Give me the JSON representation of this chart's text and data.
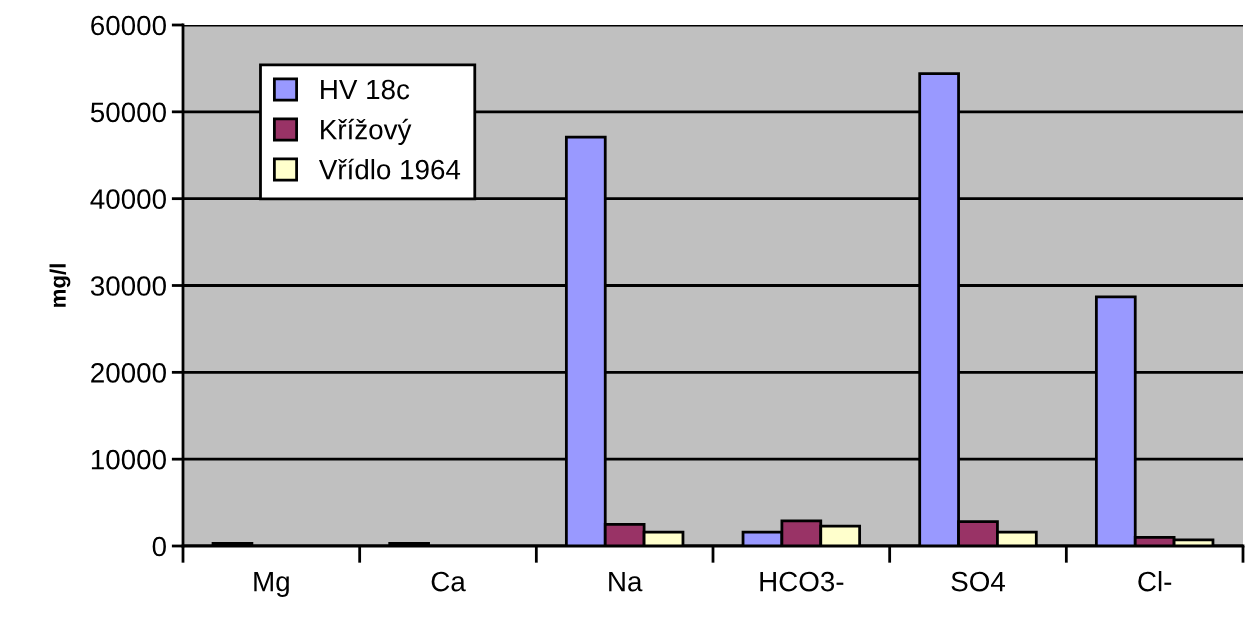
{
  "chart_data": {
    "type": "bar",
    "ylabel": "mg/l",
    "categories": [
      "Mg",
      "Ca",
      "Na",
      "HCO3-",
      "SO4",
      "Cl-"
    ],
    "series": [
      {
        "name": "HV 18c",
        "color": "#9999ff",
        "values": [
          300,
          300,
          47100,
          1600,
          54400,
          28700
        ]
      },
      {
        "name": "Křížový",
        "color": "#993366",
        "values": [
          null,
          null,
          2500,
          2900,
          2800,
          1000
        ]
      },
      {
        "name": "Vřídlo 1964",
        "color": "#ffffcc",
        "values": [
          null,
          null,
          1600,
          2300,
          1600,
          700
        ]
      }
    ],
    "ylim": [
      0,
      60000
    ],
    "yticks": [
      0,
      10000,
      20000,
      30000,
      40000,
      50000,
      60000
    ],
    "grid": "y",
    "legend": "top left"
  }
}
